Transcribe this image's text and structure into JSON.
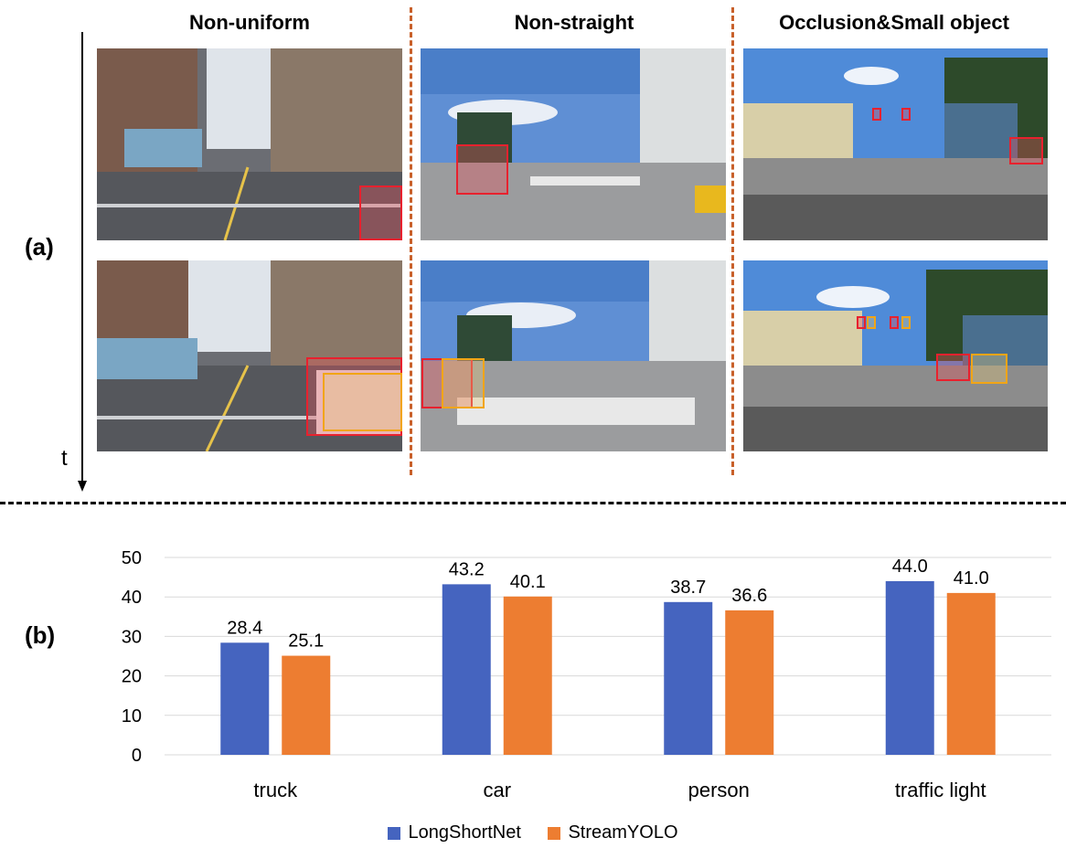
{
  "panel_a": {
    "label": "(a)",
    "time_label": "t",
    "columns": [
      {
        "title": "Non-uniform"
      },
      {
        "title": "Non-straight"
      },
      {
        "title": "Occlusion&Small object"
      }
    ]
  },
  "panel_b": {
    "label": "(b)"
  },
  "colors": {
    "longshortnet": "#4564bf",
    "streamyolo": "#ed7d31",
    "red_box": "#e8212e",
    "yellow_box": "#f2a516"
  },
  "chart_data": {
    "type": "bar",
    "categories": [
      "truck",
      "car",
      "person",
      "traffic light"
    ],
    "series": [
      {
        "name": "LongShortNet",
        "values": [
          28.4,
          43.2,
          38.7,
          44.0
        ],
        "labels": [
          "28.4",
          "43.2",
          "38.7",
          "44.0"
        ]
      },
      {
        "name": "StreamYOLO",
        "values": [
          25.1,
          40.1,
          36.6,
          41.0
        ],
        "labels": [
          "25.1",
          "40.1",
          "36.6",
          "41.0"
        ]
      }
    ],
    "yticks": [
      "0",
      "10",
      "20",
      "30",
      "40",
      "50"
    ],
    "ylim": [
      0,
      50
    ],
    "grid": true,
    "legend_position": "bottom",
    "title": "",
    "xlabel": "",
    "ylabel": ""
  }
}
